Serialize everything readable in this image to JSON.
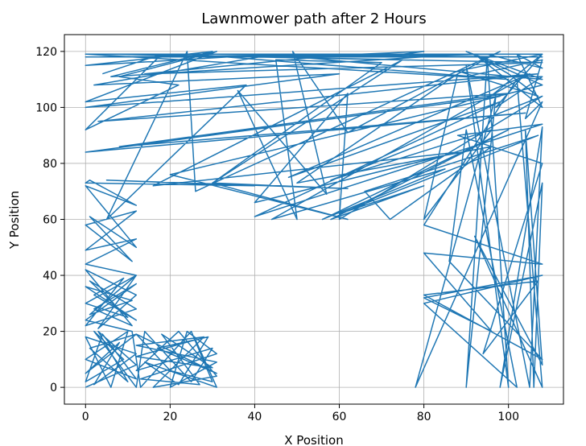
{
  "chart_data": {
    "type": "line",
    "title": "Lawnmower path after 2 Hours",
    "xlabel": "X Position",
    "ylabel": "Y Position",
    "xlim": [
      -5,
      113
    ],
    "ylim": [
      -6,
      126
    ],
    "xticks": [
      0,
      20,
      40,
      60,
      80,
      100
    ],
    "yticks": [
      0,
      20,
      40,
      60,
      80,
      100,
      120
    ],
    "grid": true,
    "legend": "none",
    "series": [
      {
        "color": "#1f77b4",
        "points": [
          [
            0,
            0
          ],
          [
            12,
            8
          ],
          [
            3,
            20
          ],
          [
            10,
            2
          ],
          [
            1,
            14
          ],
          [
            12,
            19
          ],
          [
            0,
            5
          ],
          [
            8,
            16
          ],
          [
            2,
            1
          ],
          [
            12,
            12
          ],
          [
            0,
            18
          ],
          [
            6,
            0
          ],
          [
            10,
            20
          ],
          [
            0,
            10
          ],
          [
            12,
            3
          ],
          [
            4,
            19
          ],
          [
            0,
            2
          ],
          [
            9,
            10
          ],
          [
            2,
            20
          ],
          [
            12,
            0
          ],
          [
            14,
            20
          ],
          [
            25,
            2
          ],
          [
            30,
            14
          ],
          [
            12,
            6
          ],
          [
            22,
            20
          ],
          [
            31,
            4
          ],
          [
            16,
            0
          ],
          [
            28,
            18
          ],
          [
            12,
            15
          ],
          [
            31,
            9
          ],
          [
            20,
            0
          ],
          [
            24,
            20
          ],
          [
            31,
            12
          ],
          [
            13,
            3
          ],
          [
            27,
            1
          ],
          [
            18,
            19
          ],
          [
            30,
            7
          ],
          [
            12,
            11
          ],
          [
            26,
            17
          ],
          [
            31,
            0
          ],
          [
            14,
            9
          ],
          [
            22,
            1
          ],
          [
            29,
            18
          ],
          [
            17,
            14
          ],
          [
            31,
            5
          ],
          [
            12,
            19
          ],
          [
            20,
            6
          ],
          [
            30,
            2
          ],
          [
            25,
            20
          ],
          [
            13,
            0
          ],
          [
            11,
            20
          ],
          [
            0,
            24
          ],
          [
            12,
            37
          ],
          [
            2,
            28
          ],
          [
            11,
            22
          ],
          [
            0,
            42
          ],
          [
            12,
            33
          ],
          [
            3,
            21
          ],
          [
            12,
            40
          ],
          [
            0,
            30
          ],
          [
            10,
            25
          ],
          [
            1,
            38
          ],
          [
            12,
            28
          ],
          [
            0,
            22
          ],
          [
            9,
            39
          ],
          [
            2,
            33
          ],
          [
            12,
            24
          ],
          [
            0,
            36
          ],
          [
            11,
            31
          ],
          [
            1,
            26
          ],
          [
            12,
            40
          ],
          [
            0,
            44
          ],
          [
            12,
            53
          ],
          [
            0,
            49
          ],
          [
            12,
            63
          ],
          [
            0,
            58
          ],
          [
            11,
            45
          ],
          [
            1,
            61
          ],
          [
            12,
            50
          ],
          [
            0,
            72
          ],
          [
            12,
            65
          ],
          [
            1,
            74
          ],
          [
            0,
            73
          ],
          [
            40,
            72
          ],
          [
            5,
            74
          ],
          [
            62,
            71
          ],
          [
            30,
            73
          ],
          [
            62,
            60
          ],
          [
            20,
            76
          ],
          [
            98,
            104
          ],
          [
            0,
            84
          ],
          [
            104,
            98
          ],
          [
            8,
            86
          ],
          [
            100,
            105
          ],
          [
            3,
            95
          ],
          [
            107,
            112
          ],
          [
            0,
            100
          ],
          [
            60,
            112
          ],
          [
            2,
            108
          ],
          [
            45,
            119
          ],
          [
            0,
            115
          ],
          [
            30,
            120
          ],
          [
            6,
            111
          ],
          [
            90,
            119
          ],
          [
            0,
            118
          ],
          [
            108,
            118
          ],
          [
            25,
            119
          ],
          [
            100,
            110
          ],
          [
            0,
            119
          ],
          [
            62,
            119
          ],
          [
            14,
            112
          ],
          [
            108,
            116
          ],
          [
            40,
            118
          ],
          [
            98,
            119
          ],
          [
            5,
            119
          ],
          [
            75,
            117
          ],
          [
            10,
            119
          ],
          [
            108,
            119
          ],
          [
            95,
            103
          ],
          [
            108,
            108
          ],
          [
            90,
            120
          ],
          [
            108,
            110
          ],
          [
            50,
            118
          ],
          [
            80,
            120
          ],
          [
            70,
            118
          ],
          [
            95,
            119
          ],
          [
            108,
            114
          ],
          [
            102,
            119
          ],
          [
            108,
            100
          ],
          [
            92,
            119
          ],
          [
            100,
            112
          ],
          [
            107,
            104
          ],
          [
            88,
            113
          ],
          [
            108,
            119
          ],
          [
            97,
            100
          ],
          [
            108,
            111
          ],
          [
            90,
            111
          ],
          [
            108,
            117
          ],
          [
            104,
            96
          ],
          [
            108,
            102
          ],
          [
            78,
            0
          ],
          [
            97,
            104
          ],
          [
            90,
            0
          ],
          [
            95,
            118
          ],
          [
            100,
            0
          ],
          [
            90,
            115
          ],
          [
            105,
            0
          ],
          [
            108,
            93
          ],
          [
            98,
            0
          ],
          [
            108,
            73
          ],
          [
            106,
            0
          ],
          [
            104,
            92
          ],
          [
            108,
            8
          ],
          [
            92,
            54
          ],
          [
            108,
            0
          ],
          [
            102,
            110
          ],
          [
            80,
            58
          ],
          [
            108,
            44
          ],
          [
            80,
            48
          ],
          [
            96,
            20
          ],
          [
            80,
            32
          ],
          [
            108,
            40
          ],
          [
            80,
            30
          ],
          [
            102,
            0
          ],
          [
            90,
            92
          ],
          [
            86,
            45
          ],
          [
            108,
            10
          ],
          [
            80,
            33
          ],
          [
            107,
            38
          ],
          [
            94,
            12
          ],
          [
            108,
            80
          ],
          [
            88,
            90
          ],
          [
            108,
            94
          ],
          [
            40,
            61
          ],
          [
            98,
            102
          ],
          [
            48,
            75
          ],
          [
            105,
            112
          ],
          [
            44,
            60
          ],
          [
            85,
            78
          ],
          [
            56,
            60
          ],
          [
            100,
            92
          ],
          [
            58,
            60
          ],
          [
            80,
            72
          ],
          [
            60,
            62
          ],
          [
            107,
            90
          ],
          [
            66,
            70
          ],
          [
            72,
            60
          ],
          [
            96,
            86
          ],
          [
            50,
            73
          ],
          [
            88,
            112
          ],
          [
            80,
            60
          ],
          [
            96,
            92
          ],
          [
            58,
            74
          ],
          [
            108,
            104
          ],
          [
            60,
            60
          ],
          [
            62,
            105
          ],
          [
            40,
            66
          ],
          [
            88,
            84
          ],
          [
            16,
            72
          ],
          [
            75,
            117
          ],
          [
            30,
            73
          ],
          [
            70,
            116
          ],
          [
            45,
            117
          ],
          [
            50,
            60
          ],
          [
            36,
            106
          ],
          [
            57,
            69
          ],
          [
            49,
            120
          ],
          [
            62,
            91
          ],
          [
            98,
            120
          ],
          [
            26,
            70
          ],
          [
            24,
            120
          ],
          [
            5,
            60
          ],
          [
            38,
            108
          ],
          [
            0,
            102
          ],
          [
            31,
            120
          ],
          [
            8,
            111
          ],
          [
            22,
            108
          ],
          [
            0,
            92
          ],
          [
            18,
            119
          ],
          [
            4,
            112
          ]
        ]
      }
    ]
  }
}
